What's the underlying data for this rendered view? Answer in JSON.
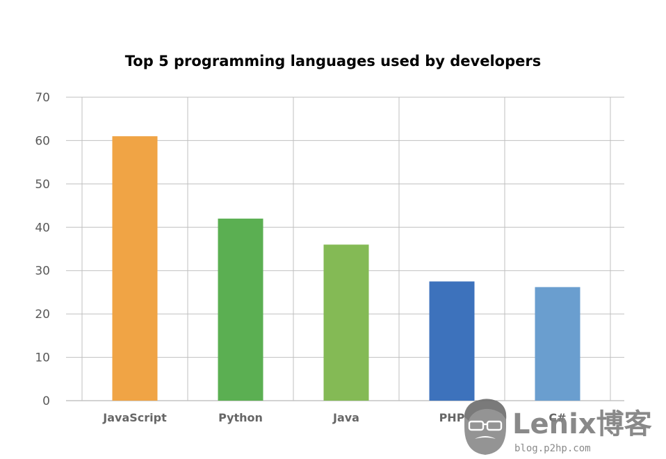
{
  "chart_data": {
    "type": "bar",
    "title": "Top 5 programming languages used by developers",
    "categories": [
      "JavaScript",
      "Python",
      "Java",
      "PHP",
      "C#"
    ],
    "values": [
      61,
      42,
      36,
      27.5,
      26.2
    ],
    "colors": [
      "#F0A445",
      "#5BAF52",
      "#84BA55",
      "#3D72BC",
      "#6A9ECF"
    ],
    "ylim": [
      0,
      70
    ],
    "yticks": [
      0,
      10,
      20,
      30,
      40,
      50,
      60,
      70
    ],
    "grid": true,
    "legend": "none"
  },
  "watermark": {
    "text": "Lenix博客",
    "sub": "blog.p2hp.com",
    "icon": "bearded-man-logo"
  }
}
